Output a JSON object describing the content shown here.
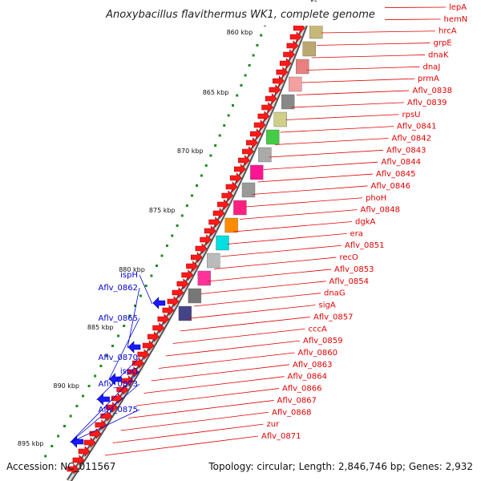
{
  "title": "Anoxybacillus flavithermus WK1, complete genome",
  "footer": {
    "accession": "Accession: NC_011567",
    "topology": "Topology: circular; Length: 2,846,746 bp; Genes: 2,932"
  },
  "colors": {
    "forward_gene": "#ff1a1a",
    "reverse_gene": "#1a1aff",
    "backbone": "#7a7a7a",
    "tick": "#1f8a1f",
    "label_forward": "#e00000",
    "label_reverse": "#0000d0"
  },
  "kbp_ticks": [
    "860 kbp",
    "865 kbp",
    "870 kbp",
    "875 kbp",
    "880 kbp",
    "885 kbp",
    "890 kbp",
    "895 kbp"
  ],
  "forward_labels": [
    "lepA",
    "hemN",
    "hrcA",
    "grpE",
    "dnaK",
    "dnaJ",
    "prmA",
    "Aflv_0838",
    "Aflv_0839",
    "rpsU",
    "Aflv_0841",
    "Aflv_0842",
    "Aflv_0843",
    "Aflv_0844",
    "Aflv_0845",
    "Aflv_0846",
    "phoH",
    "Aflv_0848",
    "dgkA",
    "era",
    "Aflv_0851",
    "recO",
    "Aflv_0853",
    "Aflv_0854",
    "dnaG",
    "sigA",
    "Aflv_0857",
    "cccA",
    "Aflv_0859",
    "Aflv_0860",
    "Aflv_0863",
    "Aflv_0864",
    "Aflv_0866",
    "Aflv_0867",
    "Aflv_0868",
    "zur",
    "Aflv_0871"
  ],
  "reverse_labels": [
    "ispH",
    "Aflv_0862",
    "Aflv_0865",
    "Aflv_0870",
    "ispG",
    "Aflv_0873",
    "Aflv_0875"
  ]
}
